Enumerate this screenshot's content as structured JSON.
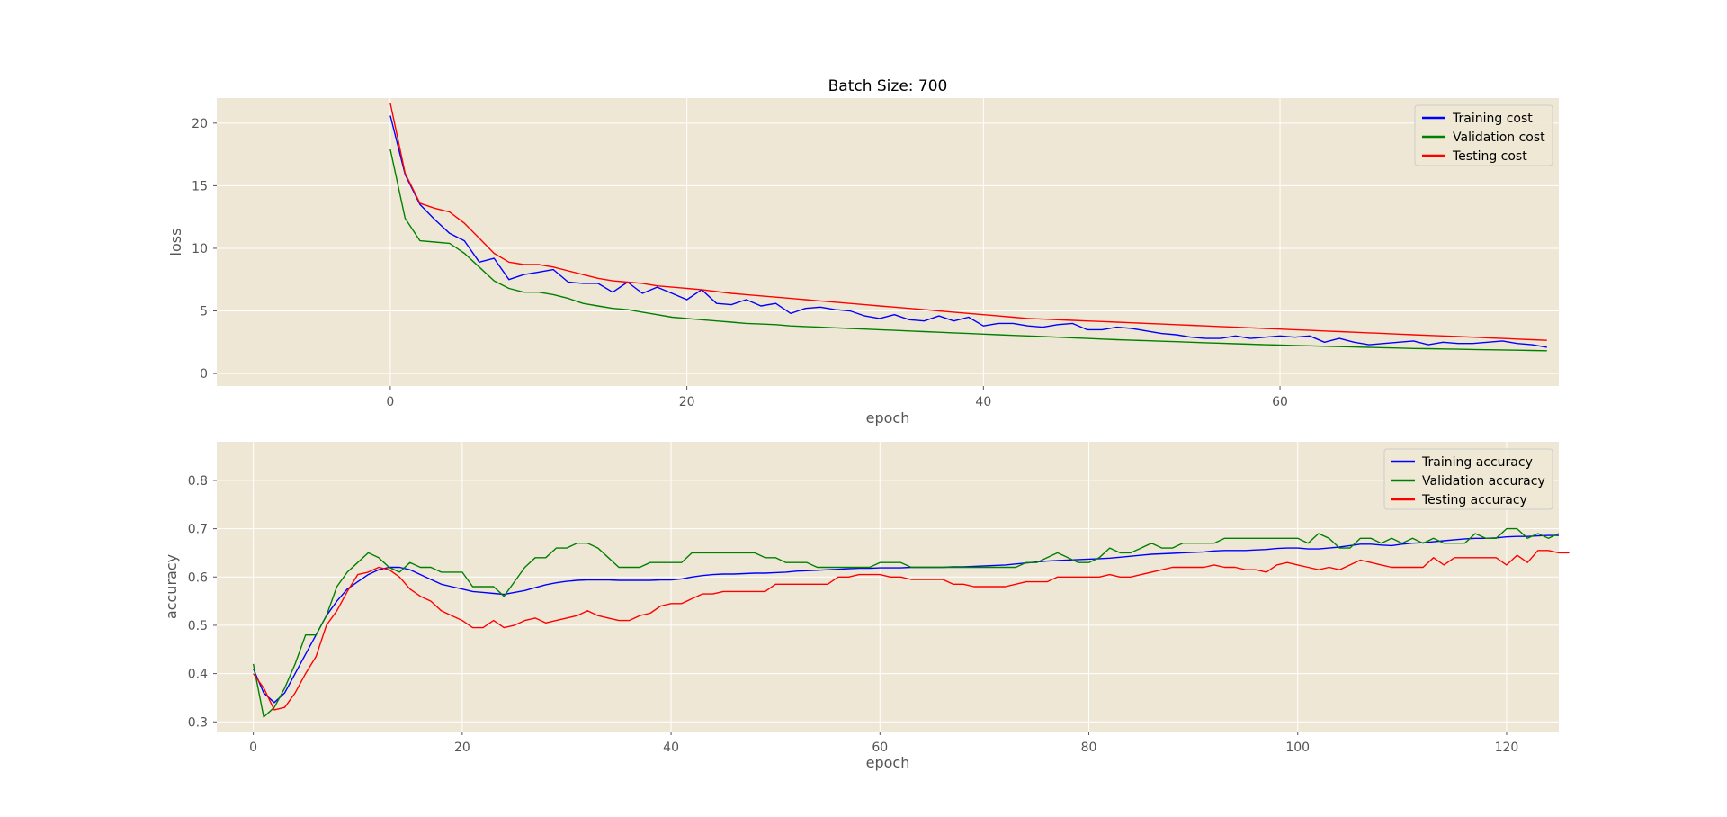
{
  "colors": {
    "figure_bg": "#ffffff",
    "axes_bg": "#eee7d5",
    "grid": "#ffffff",
    "tick_text": "#555555",
    "training": "#0000ff",
    "validation": "#008000",
    "testing": "#ff0000"
  },
  "chart_data": [
    {
      "type": "line",
      "title": "Batch Size: 700",
      "xlabel": "epoch",
      "ylabel": "loss",
      "xlim": [
        -11.7,
        78.8
      ],
      "ylim": [
        -1,
        22
      ],
      "xticks": [
        0,
        20,
        40,
        60
      ],
      "yticks": [
        0,
        5,
        10,
        15,
        20
      ],
      "grid": true,
      "legend_position": "top-right",
      "x": [
        0,
        1,
        2,
        3,
        4,
        5,
        6,
        7,
        8,
        9,
        10,
        11,
        12,
        13,
        14,
        15,
        16,
        17,
        18,
        19,
        20,
        21,
        22,
        23,
        24,
        25,
        26,
        27,
        28,
        29,
        30,
        31,
        32,
        33,
        34,
        35,
        36,
        37,
        38,
        39,
        40,
        41,
        42,
        43,
        44,
        45,
        46,
        47,
        48,
        49,
        50,
        51,
        52,
        53,
        54,
        55,
        56,
        57,
        58,
        59,
        60,
        61,
        62,
        63,
        64,
        65,
        66,
        67,
        68,
        69,
        70,
        71,
        72,
        73,
        74,
        75,
        76,
        77,
        78
      ],
      "series": [
        {
          "name": "Training cost",
          "color": "#0000ff",
          "values": [
            20.6,
            15.9,
            13.5,
            12.3,
            11.2,
            10.6,
            8.9,
            9.2,
            7.5,
            7.9,
            8.1,
            8.3,
            7.3,
            7.2,
            7.2,
            6.5,
            7.3,
            6.4,
            6.9,
            6.4,
            5.9,
            6.7,
            5.6,
            5.5,
            5.9,
            5.4,
            5.6,
            4.8,
            5.2,
            5.3,
            5.1,
            5.0,
            4.6,
            4.4,
            4.7,
            4.3,
            4.2,
            4.6,
            4.2,
            4.5,
            3.8,
            4.0,
            4.0,
            3.8,
            3.7,
            3.9,
            4.0,
            3.5,
            3.5,
            3.7,
            3.6,
            3.4,
            3.2,
            3.1,
            2.9,
            2.8,
            2.8,
            3.0,
            2.8,
            2.9,
            3.0,
            2.9,
            3.0,
            2.5,
            2.8,
            2.5,
            2.3,
            2.4,
            2.5,
            2.6,
            2.3,
            2.5,
            2.4,
            2.4,
            2.5,
            2.6,
            2.4,
            2.3,
            2.1
          ]
        },
        {
          "name": "Validation cost",
          "color": "#008000",
          "values": [
            17.9,
            12.4,
            10.6,
            10.5,
            10.4,
            9.6,
            8.5,
            7.4,
            6.8,
            6.5,
            6.5,
            6.3,
            6.0,
            5.6,
            5.4,
            5.2,
            5.1,
            4.9,
            4.7,
            4.5,
            4.4,
            4.3,
            4.2,
            4.1,
            4.0,
            3.95,
            3.9,
            3.8,
            3.75,
            3.7,
            3.65,
            3.6,
            3.55,
            3.5,
            3.45,
            3.4,
            3.35,
            3.3,
            3.25,
            3.2,
            3.15,
            3.1,
            3.05,
            3.0,
            2.95,
            2.9,
            2.85,
            2.8,
            2.75,
            2.7,
            2.66,
            2.62,
            2.58,
            2.54,
            2.5,
            2.46,
            2.42,
            2.38,
            2.34,
            2.3,
            2.27,
            2.24,
            2.21,
            2.18,
            2.15,
            2.12,
            2.09,
            2.06,
            2.03,
            2.0,
            1.98,
            1.96,
            1.94,
            1.92,
            1.9,
            1.88,
            1.86,
            1.84,
            1.82
          ]
        },
        {
          "name": "Testing cost",
          "color": "#ff0000",
          "values": [
            21.6,
            16.0,
            13.6,
            13.2,
            12.9,
            12.0,
            10.8,
            9.6,
            8.9,
            8.7,
            8.7,
            8.5,
            8.2,
            7.9,
            7.6,
            7.4,
            7.3,
            7.2,
            7.0,
            6.9,
            6.8,
            6.7,
            6.55,
            6.4,
            6.3,
            6.2,
            6.1,
            6.0,
            5.9,
            5.8,
            5.7,
            5.6,
            5.5,
            5.4,
            5.3,
            5.2,
            5.1,
            5.0,
            4.9,
            4.8,
            4.7,
            4.6,
            4.5,
            4.4,
            4.35,
            4.3,
            4.25,
            4.2,
            4.15,
            4.1,
            4.05,
            4.0,
            3.95,
            3.9,
            3.85,
            3.8,
            3.75,
            3.7,
            3.65,
            3.6,
            3.55,
            3.5,
            3.45,
            3.4,
            3.35,
            3.3,
            3.25,
            3.2,
            3.15,
            3.1,
            3.05,
            3.0,
            2.95,
            2.9,
            2.85,
            2.8,
            2.75,
            2.7,
            2.65
          ]
        }
      ]
    },
    {
      "type": "line",
      "title": "",
      "xlabel": "epoch",
      "ylabel": "accuracy",
      "xlim": [
        -3.5,
        125
      ],
      "ylim": [
        0.28,
        0.88
      ],
      "xticks": [
        0,
        20,
        40,
        60,
        80,
        100,
        120
      ],
      "yticks": [
        0.3,
        0.4,
        0.5,
        0.6,
        0.7,
        0.8
      ],
      "grid": true,
      "legend_position": "top-right",
      "x_start": 0,
      "x_step": 1,
      "series": [
        {
          "name": "Training accuracy",
          "color": "#0000ff",
          "values": [
            0.41,
            0.36,
            0.34,
            0.36,
            0.4,
            0.44,
            0.48,
            0.52,
            0.55,
            0.575,
            0.59,
            0.605,
            0.615,
            0.62,
            0.62,
            0.615,
            0.605,
            0.595,
            0.585,
            0.58,
            0.575,
            0.57,
            0.568,
            0.566,
            0.564,
            0.568,
            0.572,
            0.578,
            0.584,
            0.588,
            0.591,
            0.593,
            0.594,
            0.594,
            0.594,
            0.593,
            0.593,
            0.593,
            0.593,
            0.594,
            0.594,
            0.596,
            0.6,
            0.603,
            0.605,
            0.606,
            0.606,
            0.607,
            0.608,
            0.608,
            0.609,
            0.61,
            0.612,
            0.613,
            0.614,
            0.615,
            0.616,
            0.617,
            0.618,
            0.618,
            0.619,
            0.619,
            0.619,
            0.62,
            0.62,
            0.62,
            0.62,
            0.621,
            0.621,
            0.622,
            0.623,
            0.624,
            0.625,
            0.627,
            0.629,
            0.631,
            0.633,
            0.634,
            0.635,
            0.636,
            0.637,
            0.638,
            0.639,
            0.641,
            0.643,
            0.645,
            0.647,
            0.648,
            0.649,
            0.65,
            0.651,
            0.652,
            0.654,
            0.655,
            0.655,
            0.655,
            0.656,
            0.657,
            0.659,
            0.66,
            0.66,
            0.658,
            0.658,
            0.66,
            0.662,
            0.665,
            0.668,
            0.668,
            0.666,
            0.665,
            0.668,
            0.67,
            0.671,
            0.673,
            0.675,
            0.677,
            0.679,
            0.68,
            0.68,
            0.681,
            0.683,
            0.684,
            0.684,
            0.685,
            0.686,
            0.686
          ]
        },
        {
          "name": "Validation accuracy",
          "color": "#008000",
          "values": [
            0.42,
            0.31,
            0.33,
            0.37,
            0.42,
            0.48,
            0.48,
            0.52,
            0.58,
            0.61,
            0.63,
            0.65,
            0.64,
            0.62,
            0.61,
            0.63,
            0.62,
            0.62,
            0.61,
            0.61,
            0.61,
            0.58,
            0.58,
            0.58,
            0.56,
            0.59,
            0.62,
            0.64,
            0.64,
            0.66,
            0.66,
            0.67,
            0.67,
            0.66,
            0.64,
            0.62,
            0.62,
            0.62,
            0.63,
            0.63,
            0.63,
            0.63,
            0.65,
            0.65,
            0.65,
            0.65,
            0.65,
            0.65,
            0.65,
            0.64,
            0.64,
            0.63,
            0.63,
            0.63,
            0.62,
            0.62,
            0.62,
            0.62,
            0.62,
            0.62,
            0.63,
            0.63,
            0.63,
            0.62,
            0.62,
            0.62,
            0.62,
            0.62,
            0.62,
            0.62,
            0.62,
            0.62,
            0.62,
            0.62,
            0.63,
            0.63,
            0.64,
            0.65,
            0.64,
            0.63,
            0.63,
            0.64,
            0.66,
            0.65,
            0.65,
            0.66,
            0.67,
            0.66,
            0.66,
            0.67,
            0.67,
            0.67,
            0.67,
            0.68,
            0.68,
            0.68,
            0.68,
            0.68,
            0.68,
            0.68,
            0.68,
            0.67,
            0.69,
            0.68,
            0.66,
            0.66,
            0.68,
            0.68,
            0.67,
            0.68,
            0.67,
            0.68,
            0.67,
            0.68,
            0.67,
            0.67,
            0.67,
            0.69,
            0.68,
            0.68,
            0.7,
            0.7,
            0.68,
            0.69,
            0.68,
            0.69
          ]
        },
        {
          "name": "Testing accuracy",
          "color": "#ff0000",
          "values": [
            0.4,
            0.37,
            0.325,
            0.33,
            0.36,
            0.4,
            0.435,
            0.5,
            0.53,
            0.57,
            0.605,
            0.61,
            0.62,
            0.615,
            0.6,
            0.575,
            0.56,
            0.55,
            0.53,
            0.52,
            0.51,
            0.495,
            0.495,
            0.51,
            0.495,
            0.5,
            0.51,
            0.515,
            0.505,
            0.51,
            0.515,
            0.52,
            0.53,
            0.52,
            0.515,
            0.51,
            0.51,
            0.52,
            0.525,
            0.54,
            0.545,
            0.545,
            0.555,
            0.565,
            0.565,
            0.57,
            0.57,
            0.57,
            0.57,
            0.57,
            0.585,
            0.585,
            0.585,
            0.585,
            0.585,
            0.585,
            0.6,
            0.6,
            0.605,
            0.605,
            0.605,
            0.6,
            0.6,
            0.595,
            0.595,
            0.595,
            0.595,
            0.585,
            0.585,
            0.58,
            0.58,
            0.58,
            0.58,
            0.585,
            0.59,
            0.59,
            0.59,
            0.6,
            0.6,
            0.6,
            0.6,
            0.6,
            0.605,
            0.6,
            0.6,
            0.605,
            0.61,
            0.615,
            0.62,
            0.62,
            0.62,
            0.62,
            0.625,
            0.62,
            0.62,
            0.615,
            0.615,
            0.61,
            0.625,
            0.63,
            0.625,
            0.62,
            0.615,
            0.62,
            0.615,
            0.625,
            0.635,
            0.63,
            0.625,
            0.62,
            0.62,
            0.62,
            0.62,
            0.64,
            0.625,
            0.64,
            0.64,
            0.64,
            0.64,
            0.64,
            0.625,
            0.645,
            0.63,
            0.655,
            0.655,
            0.65,
            0.65
          ]
        }
      ]
    }
  ]
}
